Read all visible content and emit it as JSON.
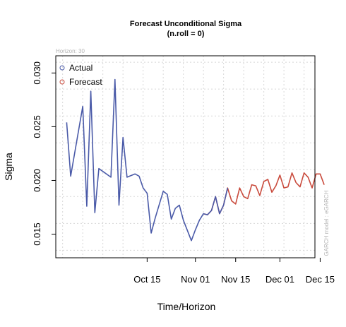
{
  "chart_data": {
    "type": "line",
    "title": "Forecast Unconditional Sigma",
    "subtitle": "(n.roll = 0)",
    "xlabel": "Time/Horizon",
    "ylabel": "Sigma",
    "horizon_note": "Horizon: 30",
    "side_note": "GARCH model : eGARCH",
    "x_range": [
      -22.7,
      41.7
    ],
    "y_range": [
      0.0128,
      0.0316
    ],
    "x_ticks": [
      {
        "label": "Oct 15",
        "x": 0
      },
      {
        "label": "Nov 01",
        "x": 12
      },
      {
        "label": "Nov 15",
        "x": 22
      },
      {
        "label": "Dec 01",
        "x": 33
      },
      {
        "label": "Dec 15",
        "x": 43
      }
    ],
    "y_ticks": [
      {
        "label": "0.015",
        "y": 0.015
      },
      {
        "label": "0.020",
        "y": 0.02
      },
      {
        "label": "0.025",
        "y": 0.025
      },
      {
        "label": "0.030",
        "y": 0.03
      }
    ],
    "grid": true,
    "legend_position": "top-left",
    "series": [
      {
        "name": "Actual",
        "color": "#4a5aa8",
        "x": [
          -20,
          -19,
          -16,
          -15,
          -14,
          -13,
          -12,
          -9,
          -8,
          -7,
          -6,
          -5,
          -3,
          -2,
          -1,
          0,
          1,
          2,
          4,
          5,
          6,
          7,
          8,
          9,
          11,
          12,
          13,
          14,
          15,
          16,
          17,
          18,
          19,
          20
        ],
        "y": [
          0.0254,
          0.0204,
          0.0269,
          0.0176,
          0.0283,
          0.017,
          0.0211,
          0.0203,
          0.0294,
          0.0177,
          0.024,
          0.0203,
          0.0206,
          0.0204,
          0.0193,
          0.0188,
          0.0151,
          0.0165,
          0.019,
          0.0187,
          0.0164,
          0.0174,
          0.0177,
          0.0163,
          0.0144,
          0.0154,
          0.0163,
          0.0169,
          0.0168,
          0.0172,
          0.0185,
          0.0169,
          0.0177,
          0.0193
        ]
      },
      {
        "name": "Forecast",
        "color": "#c94a3c",
        "x": [
          14,
          15,
          16,
          17,
          18,
          19,
          20,
          21,
          22,
          23,
          24,
          25,
          26,
          27,
          28,
          29,
          30,
          31,
          32,
          33,
          34,
          35,
          36,
          37,
          38,
          39,
          40,
          41,
          42,
          43,
          44
        ],
        "y": [
          0.0169,
          0.0168,
          0.0172,
          0.0185,
          0.0169,
          0.0177,
          0.0193,
          0.0181,
          0.0178,
          0.0193,
          0.0185,
          0.0183,
          0.0196,
          0.0195,
          0.0186,
          0.0199,
          0.0201,
          0.0189,
          0.0195,
          0.0205,
          0.0193,
          0.0194,
          0.0207,
          0.0198,
          0.0194,
          0.0207,
          0.0203,
          0.0193,
          0.0206,
          0.0206,
          0.0196
        ]
      }
    ]
  }
}
